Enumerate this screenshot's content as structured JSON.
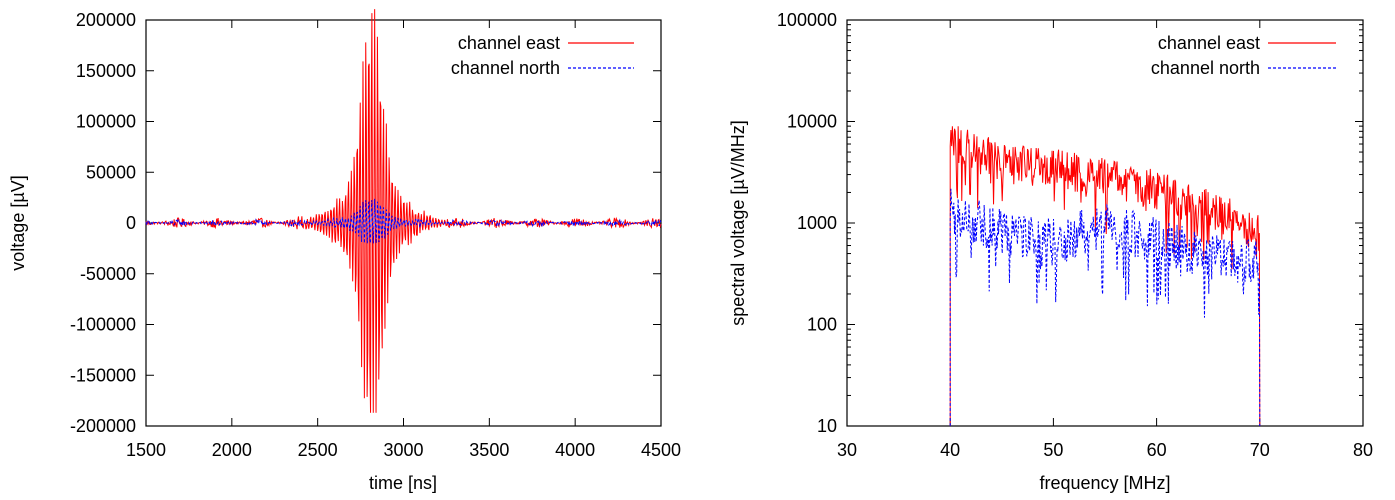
{
  "chart_data": [
    {
      "type": "line",
      "xlabel": "time [ns]",
      "ylabel": "voltage [µV]",
      "xlim": [
        1500,
        4500
      ],
      "ylim": [
        -200000,
        200000
      ],
      "xticks": [
        1500,
        2000,
        2500,
        3000,
        3500,
        4000,
        4500
      ],
      "xtick_labels": [
        "1500",
        "2000",
        "2500",
        "3000",
        "3500",
        "4000",
        "4500"
      ],
      "yticks": [
        -200000,
        -150000,
        -100000,
        -50000,
        0,
        50000,
        100000,
        150000,
        200000
      ],
      "ytick_labels": [
        "-200000",
        "-150000",
        "-100000",
        "-50000",
        "0",
        "50000",
        "100000",
        "150000",
        "200000"
      ],
      "legend_position": "top-right",
      "series": [
        {
          "name": "channel east",
          "color": "#ff0000",
          "style": "solid",
          "signal": {
            "center": 2815,
            "peak": 183000,
            "min": -187000,
            "width": 80,
            "noise": 5000,
            "period": 17
          }
        },
        {
          "name": "channel north",
          "color": "#0000ff",
          "style": "dashed",
          "signal": {
            "center": 2815,
            "peak": 22000,
            "min": -20000,
            "width": 90,
            "noise": 3000,
            "period": 17
          }
        }
      ]
    },
    {
      "type": "line",
      "xlabel": "frequency [MHz]",
      "ylabel": "spectral voltage [µV/MHz]",
      "xlim": [
        30,
        80
      ],
      "ylim": [
        10,
        100000
      ],
      "yscale": "log",
      "xticks": [
        30,
        40,
        50,
        60,
        70,
        80
      ],
      "xtick_labels": [
        "30",
        "40",
        "50",
        "60",
        "70",
        "80"
      ],
      "yticks": [
        10,
        100,
        1000,
        10000,
        100000
      ],
      "ytick_labels": [
        "10",
        "100",
        "1000",
        "10000",
        "100000"
      ],
      "legend_position": "top-right",
      "series": [
        {
          "name": "channel east",
          "color": "#ff0000",
          "style": "solid",
          "band": [
            40,
            70
          ],
          "envelope": [
            [
              40,
              9000
            ],
            [
              45,
              5500
            ],
            [
              50,
              5000
            ],
            [
              55,
              4000
            ],
            [
              60,
              3000
            ],
            [
              65,
              2000
            ],
            [
              70,
              1200
            ]
          ],
          "spread_decades": 0.4
        },
        {
          "name": "channel north",
          "color": "#0000ff",
          "style": "dashed",
          "band": [
            40,
            70
          ],
          "envelope": [
            [
              40,
              2000
            ],
            [
              45,
              1200
            ],
            [
              50,
              1000
            ],
            [
              55,
              1400
            ],
            [
              60,
              1000
            ],
            [
              65,
              700
            ],
            [
              70,
              600
            ]
          ],
          "spread_decades": 0.45
        }
      ]
    }
  ]
}
